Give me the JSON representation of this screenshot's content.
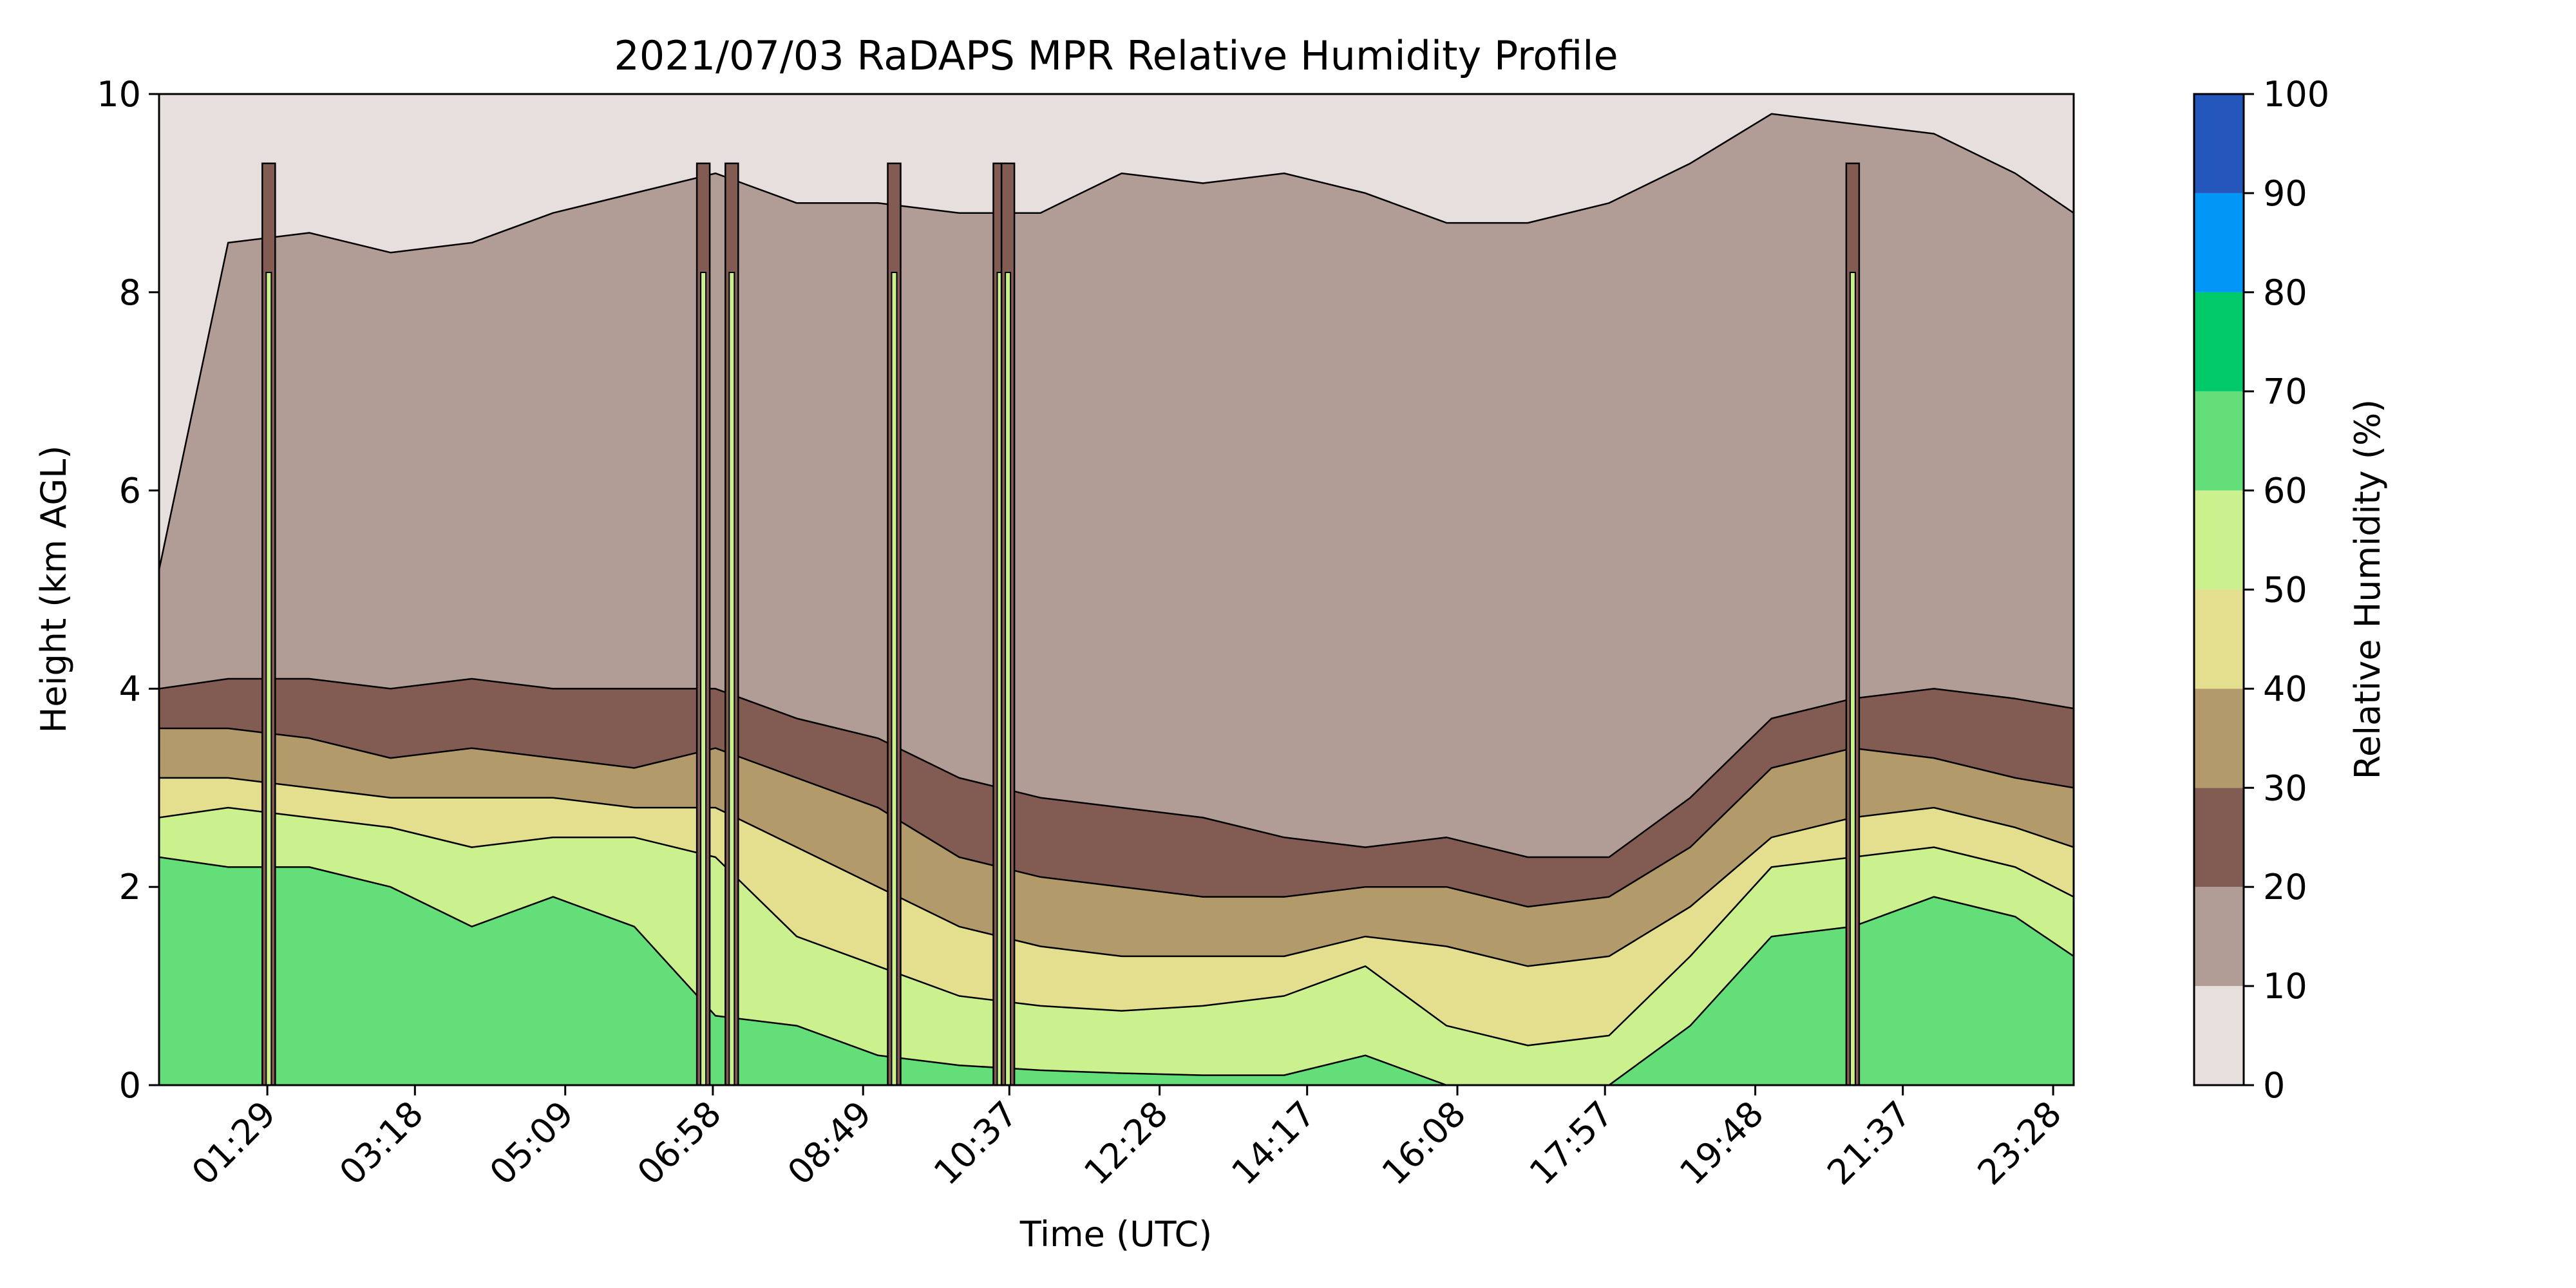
{
  "chart_data": {
    "type": "heatmap",
    "subtype": "filled-contour",
    "title": "2021/07/03 RaDAPS MPR Relative Humidity Profile",
    "xlabel": "Time (UTC)",
    "ylabel": "Height (km AGL)",
    "x_ticks": [
      "01:29",
      "03:18",
      "05:09",
      "06:58",
      "08:49",
      "10:37",
      "12:28",
      "14:17",
      "16:08",
      "17:57",
      "19:48",
      "21:37",
      "23:28"
    ],
    "x_tick_hours": [
      1.483,
      3.3,
      5.15,
      6.967,
      8.817,
      10.617,
      12.467,
      14.283,
      16.133,
      17.95,
      19.8,
      21.617,
      23.467
    ],
    "xlim_hours": [
      0.15,
      23.72
    ],
    "y_ticks": [
      0,
      2,
      4,
      6,
      8,
      10
    ],
    "ylim": [
      0,
      10
    ],
    "grid": false,
    "colorbar": {
      "label": "Relative Humidity (%)",
      "ticks": [
        0,
        10,
        20,
        30,
        40,
        50,
        60,
        70,
        80,
        90,
        100
      ],
      "levels": [
        {
          "range": [
            0,
            10
          ],
          "color": "#e6dfdd"
        },
        {
          "range": [
            10,
            20
          ],
          "color": "#b29d96"
        },
        {
          "range": [
            20,
            30
          ],
          "color": "#825c52"
        },
        {
          "range": [
            30,
            40
          ],
          "color": "#b29a6b"
        },
        {
          "range": [
            40,
            50
          ],
          "color": "#e4df8e"
        },
        {
          "range": [
            50,
            60
          ],
          "color": "#cbf18e"
        },
        {
          "range": [
            60,
            70
          ],
          "color": "#63de78"
        },
        {
          "range": [
            70,
            80
          ],
          "color": "#00c96a"
        },
        {
          "range": [
            80,
            90
          ],
          "color": "#0097f7"
        },
        {
          "range": [
            90,
            100
          ],
          "color": "#2456bb"
        }
      ]
    },
    "contour_boundaries_km": {
      "x_hours": [
        0.15,
        1.0,
        2.0,
        3.0,
        4.0,
        5.0,
        6.0,
        7.0,
        8.0,
        9.0,
        10.0,
        11.0,
        12.0,
        13.0,
        14.0,
        15.0,
        16.0,
        17.0,
        18.0,
        19.0,
        20.0,
        21.0,
        22.0,
        23.0,
        23.72
      ],
      "rh_above_60": [
        2.3,
        2.2,
        2.2,
        2.0,
        1.6,
        1.9,
        1.6,
        0.7,
        0.6,
        0.3,
        0.2,
        0.15,
        0.12,
        0.1,
        0.1,
        0.3,
        0.0,
        0.0,
        0.0,
        0.6,
        1.5,
        1.6,
        1.9,
        1.7,
        1.3
      ],
      "rh_above_50": [
        2.7,
        2.8,
        2.7,
        2.6,
        2.4,
        2.5,
        2.5,
        2.3,
        1.5,
        1.2,
        0.9,
        0.8,
        0.75,
        0.8,
        0.9,
        1.2,
        0.6,
        0.4,
        0.5,
        1.3,
        2.2,
        2.3,
        2.4,
        2.2,
        1.9
      ],
      "rh_above_40": [
        3.1,
        3.1,
        3.0,
        2.9,
        2.9,
        2.9,
        2.8,
        2.8,
        2.4,
        2.0,
        1.6,
        1.4,
        1.3,
        1.3,
        1.3,
        1.5,
        1.4,
        1.2,
        1.3,
        1.8,
        2.5,
        2.7,
        2.8,
        2.6,
        2.4
      ],
      "rh_above_30": [
        3.6,
        3.6,
        3.5,
        3.3,
        3.4,
        3.3,
        3.2,
        3.4,
        3.1,
        2.8,
        2.3,
        2.1,
        2.0,
        1.9,
        1.9,
        2.0,
        2.0,
        1.8,
        1.9,
        2.4,
        3.2,
        3.4,
        3.3,
        3.1,
        3.0
      ],
      "rh_above_20": [
        4.0,
        4.1,
        4.1,
        4.0,
        4.1,
        4.0,
        4.0,
        4.0,
        3.7,
        3.5,
        3.1,
        2.9,
        2.8,
        2.7,
        2.5,
        2.4,
        2.5,
        2.3,
        2.3,
        2.9,
        3.7,
        3.9,
        4.0,
        3.9,
        3.8
      ],
      "rh_above_10": [
        5.2,
        8.5,
        8.6,
        8.4,
        8.5,
        8.8,
        9.0,
        9.2,
        8.9,
        8.9,
        8.8,
        8.8,
        9.2,
        9.1,
        9.2,
        9.0,
        8.7,
        8.7,
        8.9,
        9.3,
        9.8,
        9.7,
        9.6,
        9.2,
        8.8
      ]
    },
    "vertical_moist_columns_hours": [
      1.5,
      6.85,
      7.2,
      9.2,
      10.5,
      10.6,
      21.0
    ]
  }
}
